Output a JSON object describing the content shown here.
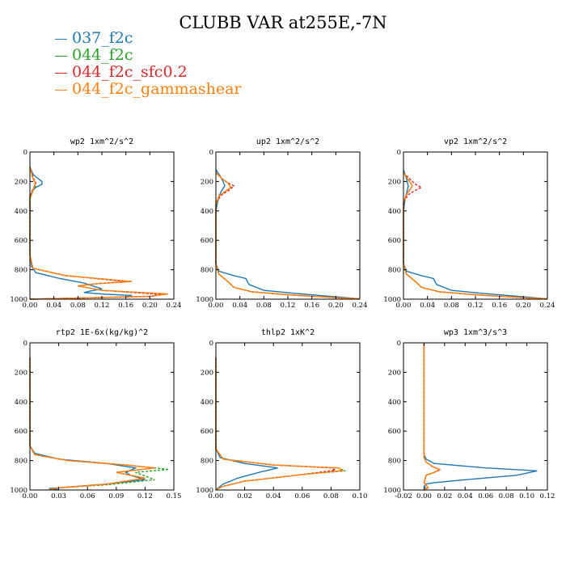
{
  "title": "CLUBB VAR at255E,-7N",
  "legend": [
    {
      "label": "037_f2c",
      "color": "#1f77b4"
    },
    {
      "label": "044_f2c",
      "color": "#2ca02c"
    },
    {
      "label": "044_f2c_sfc0.2",
      "color": "#d62728"
    },
    {
      "label": "044_f2c_gammashear",
      "color": "#ff7f0e"
    }
  ],
  "chart_data": [
    {
      "type": "line",
      "title": "wp2  1xm^2/s^2",
      "xlim": [
        0,
        0.24
      ],
      "ylim": [
        1000,
        0
      ],
      "y_inverted": true,
      "xticks": [
        "0.00",
        "0.04",
        "0.08",
        "0.12",
        "0.16",
        "0.20",
        "0.24"
      ],
      "yticks": [
        "0",
        "200",
        "400",
        "600",
        "800",
        "1000"
      ],
      "series": [
        {
          "color": "#1f77b4",
          "x": [
            0,
            0.005,
            0.01,
            0.02,
            0.02,
            0.01,
            0.005,
            0,
            0,
            0.003,
            0.01,
            0.05,
            0.09,
            0.12,
            0.1,
            0.09,
            0.12,
            0.17,
            0.16,
            0.0
          ],
          "y": [
            100,
            150,
            170,
            200,
            220,
            240,
            260,
            300,
            700,
            780,
            820,
            860,
            890,
            930,
            945,
            955,
            965,
            975,
            985,
            1000
          ]
        },
        {
          "color": "#2ca02c",
          "x": [
            0,
            0.004,
            0.008,
            0.01,
            0.005,
            0,
            0,
            0.005,
            0.06,
            0.17,
            0.11,
            0.08,
            0.12,
            0.23,
            0.2,
            0.0
          ],
          "y": [
            100,
            170,
            200,
            230,
            260,
            320,
            700,
            790,
            840,
            880,
            895,
            910,
            940,
            965,
            980,
            1000
          ]
        },
        {
          "color": "#d62728",
          "x": [
            0,
            0.006,
            0.01,
            0.008,
            0.004,
            0,
            0,
            0.005,
            0.06,
            0.16,
            0.11,
            0.08,
            0.12,
            0.22,
            0.2,
            0.0
          ],
          "y": [
            100,
            180,
            210,
            230,
            260,
            320,
            700,
            790,
            840,
            880,
            895,
            910,
            940,
            968,
            982,
            1000
          ]
        },
        {
          "color": "#ff7f0e",
          "x": [
            0,
            0.005,
            0.009,
            0.006,
            0,
            0,
            0.005,
            0.06,
            0.17,
            0.11,
            0.08,
            0.12,
            0.23,
            0.2,
            0.0
          ],
          "y": [
            100,
            180,
            210,
            250,
            320,
            700,
            790,
            840,
            880,
            895,
            910,
            940,
            965,
            980,
            1000
          ]
        }
      ]
    },
    {
      "type": "line",
      "title": "up2  1xm^2/s^2",
      "xlim": [
        0,
        0.24
      ],
      "ylim": [
        1000,
        0
      ],
      "y_inverted": true,
      "xticks": [
        "0.00",
        "0.04",
        "0.08",
        "0.12",
        "0.16",
        "0.20",
        "0.24"
      ],
      "yticks": [
        "0",
        "200",
        "400",
        "600",
        "800",
        "1000"
      ],
      "series": [
        {
          "color": "#1f77b4",
          "x": [
            0,
            0.008,
            0.012,
            0.015,
            0.01,
            0.005,
            0,
            0,
            0.005,
            0.03,
            0.05,
            0.055,
            0.08,
            0.13,
            0.19,
            0.24
          ],
          "y": [
            120,
            170,
            200,
            230,
            260,
            300,
            400,
            760,
            810,
            840,
            860,
            900,
            940,
            960,
            980,
            998
          ]
        },
        {
          "color": "#2ca02c",
          "x": [
            0,
            0.01,
            0.02,
            0.025,
            0.015,
            0.005,
            0,
            0,
            0.005,
            0.02,
            0.03,
            0.06,
            0.12,
            0.2,
            0.24
          ],
          "y": [
            140,
            180,
            210,
            240,
            270,
            300,
            360,
            760,
            830,
            880,
            920,
            950,
            970,
            990,
            998
          ]
        },
        {
          "color": "#d62728",
          "x": [
            0,
            0.01,
            0.02,
            0.03,
            0.022,
            0.01,
            0,
            0,
            0.005,
            0.02,
            0.03,
            0.06,
            0.12,
            0.2,
            0.24
          ],
          "y": [
            140,
            180,
            210,
            230,
            260,
            290,
            340,
            760,
            830,
            880,
            920,
            950,
            970,
            990,
            998
          ]
        },
        {
          "color": "#ff7f0e",
          "x": [
            0,
            0.01,
            0.02,
            0.025,
            0.015,
            0.005,
            0,
            0,
            0.005,
            0.02,
            0.03,
            0.06,
            0.12,
            0.2,
            0.24
          ],
          "y": [
            140,
            180,
            210,
            240,
            270,
            300,
            360,
            760,
            830,
            880,
            920,
            950,
            970,
            990,
            998
          ]
        }
      ]
    },
    {
      "type": "line",
      "title": "vp2  1xm^2/s^2",
      "xlim": [
        0,
        0.24
      ],
      "ylim": [
        1000,
        0
      ],
      "y_inverted": true,
      "xticks": [
        "0.00",
        "0.04",
        "0.08",
        "0.12",
        "0.16",
        "0.20",
        "0.24"
      ],
      "yticks": [
        "0",
        "200",
        "400",
        "600",
        "800",
        "1000"
      ],
      "series": [
        {
          "color": "#1f77b4",
          "x": [
            0,
            0.005,
            0.008,
            0.006,
            0.003,
            0,
            0,
            0.005,
            0.03,
            0.05,
            0.055,
            0.08,
            0.13,
            0.19,
            0.24
          ],
          "y": [
            120,
            180,
            230,
            270,
            310,
            400,
            760,
            810,
            840,
            860,
            900,
            940,
            960,
            980,
            998
          ]
        },
        {
          "color": "#2ca02c",
          "x": [
            0,
            0.01,
            0.015,
            0.01,
            0.005,
            0,
            0,
            0.005,
            0.02,
            0.03,
            0.06,
            0.12,
            0.2,
            0.24
          ],
          "y": [
            140,
            200,
            230,
            260,
            290,
            340,
            760,
            830,
            880,
            920,
            950,
            970,
            990,
            998
          ]
        },
        {
          "color": "#d62728",
          "x": [
            0,
            0.012,
            0.02,
            0.03,
            0.02,
            0.008,
            0,
            0,
            0.005,
            0.02,
            0.03,
            0.06,
            0.12,
            0.2,
            0.24
          ],
          "y": [
            140,
            190,
            220,
            240,
            260,
            290,
            340,
            760,
            830,
            880,
            920,
            950,
            970,
            990,
            998
          ]
        },
        {
          "color": "#ff7f0e",
          "x": [
            0,
            0.01,
            0.015,
            0.01,
            0.005,
            0,
            0,
            0.005,
            0.02,
            0.03,
            0.06,
            0.12,
            0.2,
            0.24
          ],
          "y": [
            140,
            200,
            230,
            260,
            290,
            340,
            760,
            830,
            880,
            920,
            950,
            970,
            990,
            998
          ]
        }
      ]
    },
    {
      "type": "line",
      "title": "rtp2  1E-6x(kg/kg)^2",
      "xlim": [
        0,
        0.15
      ],
      "ylim": [
        1000,
        0
      ],
      "y_inverted": true,
      "xticks": [
        "0.00",
        "0.03",
        "0.06",
        "0.09",
        "0.12",
        "0.15"
      ],
      "yticks": [
        "0",
        "200",
        "400",
        "600",
        "800",
        "1000"
      ],
      "series": [
        {
          "color": "#1f77b4",
          "x": [
            0,
            0,
            0.005,
            0.03,
            0.08,
            0.11,
            0.1,
            0.105,
            0.12,
            0.08,
            0.04,
            0.02,
            0.03
          ],
          "y": [
            100,
            700,
            750,
            790,
            820,
            850,
            880,
            900,
            930,
            960,
            980,
            990,
            998
          ]
        },
        {
          "color": "#2ca02c",
          "x": [
            0,
            0,
            0.005,
            0.04,
            0.1,
            0.145,
            0.11,
            0.13,
            0.08,
            0.03,
            0.02
          ],
          "y": [
            100,
            700,
            760,
            800,
            830,
            860,
            880,
            930,
            965,
            985,
            998
          ]
        },
        {
          "color": "#d62728",
          "x": [
            0,
            0,
            0.005,
            0.04,
            0.1,
            0.13,
            0.09,
            0.12,
            0.08,
            0.03,
            0.02
          ],
          "y": [
            100,
            700,
            760,
            800,
            830,
            850,
            880,
            920,
            960,
            985,
            998
          ]
        },
        {
          "color": "#ff7f0e",
          "x": [
            0,
            0,
            0.005,
            0.04,
            0.1,
            0.13,
            0.09,
            0.12,
            0.08,
            0.03,
            0.02
          ],
          "y": [
            100,
            700,
            760,
            800,
            830,
            850,
            880,
            920,
            960,
            985,
            998
          ]
        }
      ]
    },
    {
      "type": "line",
      "title": "thlp2  1xK^2",
      "xlim": [
        0,
        0.1
      ],
      "ylim": [
        1000,
        0
      ],
      "y_inverted": true,
      "xticks": [
        "0.00",
        "0.02",
        "0.04",
        "0.06",
        "0.08",
        "0.10"
      ],
      "yticks": [
        "0",
        "200",
        "400",
        "600",
        "800",
        "1000"
      ],
      "series": [
        {
          "color": "#1f77b4",
          "x": [
            0,
            0,
            0.003,
            0.02,
            0.043,
            0.03,
            0.015,
            0.005,
            0
          ],
          "y": [
            100,
            720,
            780,
            820,
            850,
            880,
            920,
            960,
            998
          ]
        },
        {
          "color": "#2ca02c",
          "x": [
            0,
            0,
            0.005,
            0.04,
            0.085,
            0.09,
            0.06,
            0.02,
            0.005,
            0
          ],
          "y": [
            100,
            720,
            790,
            830,
            850,
            870,
            895,
            940,
            975,
            998
          ]
        },
        {
          "color": "#d62728",
          "x": [
            0,
            0,
            0.005,
            0.04,
            0.08,
            0.083,
            0.06,
            0.02,
            0.005,
            0
          ],
          "y": [
            100,
            720,
            790,
            830,
            850,
            865,
            895,
            940,
            975,
            998
          ]
        },
        {
          "color": "#ff7f0e",
          "x": [
            0,
            0,
            0.005,
            0.04,
            0.085,
            0.088,
            0.06,
            0.02,
            0.005,
            0
          ],
          "y": [
            100,
            720,
            790,
            830,
            850,
            868,
            895,
            940,
            975,
            998
          ]
        }
      ]
    },
    {
      "type": "line",
      "title": "wp3  1xm^3/s^3",
      "xlim": [
        -0.02,
        0.12
      ],
      "ylim": [
        1000,
        0
      ],
      "y_inverted": true,
      "xticks": [
        "-0.02",
        "0.00",
        "0.02",
        "0.04",
        "0.06",
        "0.08",
        "0.10",
        "0.12"
      ],
      "yticks": [
        "0",
        "200",
        "400",
        "600",
        "800",
        "1000"
      ],
      "series": [
        {
          "color": "#1f77b4",
          "x": [
            0,
            0,
            0.002,
            0.01,
            0.06,
            0.11,
            0.09,
            0.04,
            0.01,
            0.002,
            0.0,
            0.002,
            0
          ],
          "y": [
            0,
            760,
            790,
            820,
            850,
            870,
            900,
            930,
            950,
            960,
            975,
            990,
            1000
          ]
        },
        {
          "color": "#2ca02c",
          "x": [
            0,
            0,
            0.002,
            0.008,
            0.015,
            0.01,
            0.002,
            0,
            0.004,
            0
          ],
          "y": [
            0,
            780,
            810,
            840,
            860,
            880,
            900,
            950,
            985,
            1000
          ]
        },
        {
          "color": "#d62728",
          "x": [
            0,
            0,
            0.002,
            0.008,
            0.016,
            0.01,
            0.002,
            0,
            0.004,
            0
          ],
          "y": [
            0,
            780,
            810,
            840,
            862,
            880,
            900,
            950,
            985,
            1000
          ]
        },
        {
          "color": "#ff7f0e",
          "x": [
            0,
            0,
            0.002,
            0.008,
            0.015,
            0.01,
            0.002,
            0,
            0.004,
            0
          ],
          "y": [
            0,
            780,
            810,
            840,
            860,
            880,
            900,
            950,
            985,
            1000
          ]
        }
      ]
    }
  ]
}
